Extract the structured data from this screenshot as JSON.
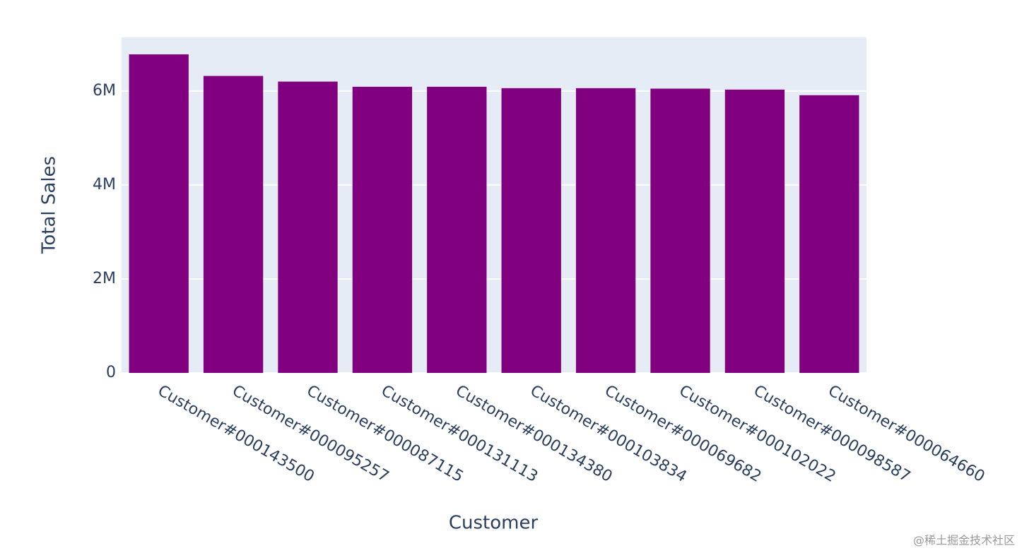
{
  "chart_data": {
    "type": "bar",
    "xlabel": "Customer",
    "ylabel": "Total Sales",
    "categories": [
      "Customer#000143500",
      "Customer#000095257",
      "Customer#000087115",
      "Customer#000131113",
      "Customer#000134380",
      "Customer#000103834",
      "Customer#000069682",
      "Customer#000102022",
      "Customer#000098587",
      "Customer#000064660"
    ],
    "values": [
      6780000,
      6320000,
      6200000,
      6090000,
      6090000,
      6060000,
      6060000,
      6050000,
      6030000,
      5910000
    ],
    "color": "#800080",
    "ylim": [
      0,
      7140000
    ],
    "yticks": [
      0,
      {
        "value": 2000000,
        "label": "2M"
      },
      {
        "value": 4000000,
        "label": "4M"
      },
      {
        "value": 6000000,
        "label": "6M"
      }
    ],
    "grid": true
  },
  "watermark": "@稀土掘金技术社区"
}
